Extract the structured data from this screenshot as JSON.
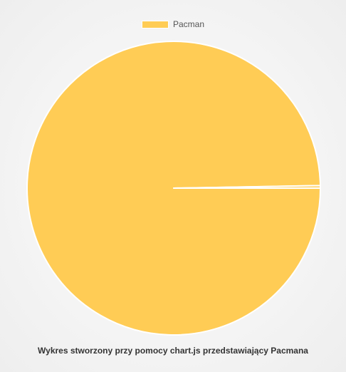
{
  "chart_data": {
    "type": "pie",
    "title": "",
    "legend": {
      "position": "top",
      "entries": [
        {
          "label": "Pacman",
          "color": "#ffcc55"
        }
      ]
    },
    "slices": [
      {
        "label": "Pacman",
        "value": 359,
        "color": "#ffcc55"
      },
      {
        "label": "",
        "value": 1,
        "color": "#ffcc55"
      }
    ],
    "border_color": "#ffffff",
    "start_angle_deg": 0
  },
  "caption": "Wykres stworzony przy pomocy chart.js przedstawiający Pacmana"
}
